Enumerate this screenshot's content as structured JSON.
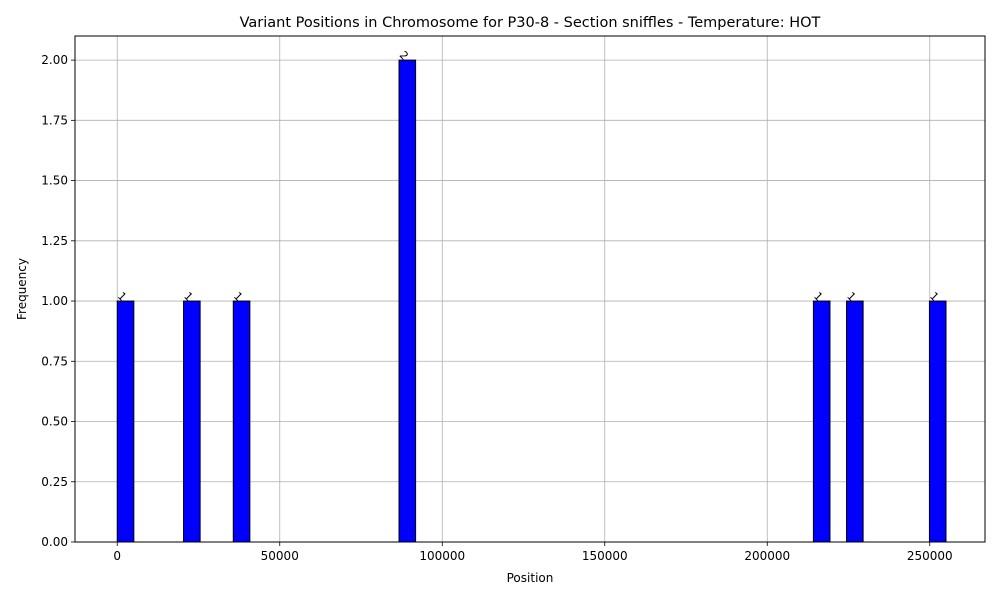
{
  "chart_data": {
    "type": "bar",
    "title": "Variant Positions in Chromosome for P30-8 - Section sniffles - Temperature: HOT",
    "xlabel": "Position",
    "ylabel": "Frequency",
    "xlim": [
      -13000,
      267000
    ],
    "ylim": [
      0,
      2.1
    ],
    "bin_width": 5100,
    "bars": [
      {
        "x_start": 0,
        "value": 1,
        "label": "1"
      },
      {
        "x_start": 20400,
        "value": 1,
        "label": "1"
      },
      {
        "x_start": 35700,
        "value": 1,
        "label": "1"
      },
      {
        "x_start": 86700,
        "value": 2,
        "label": "2"
      },
      {
        "x_start": 214200,
        "value": 1,
        "label": "1"
      },
      {
        "x_start": 224400,
        "value": 1,
        "label": "1"
      },
      {
        "x_start": 249900,
        "value": 1,
        "label": "1"
      }
    ],
    "x_ticks": [
      {
        "value": 0,
        "label": "0"
      },
      {
        "value": 50000,
        "label": "50000"
      },
      {
        "value": 100000,
        "label": "100000"
      },
      {
        "value": 150000,
        "label": "150000"
      },
      {
        "value": 200000,
        "label": "200000"
      },
      {
        "value": 250000,
        "label": "250000"
      }
    ],
    "y_ticks": [
      {
        "value": 0,
        "label": "0.00"
      },
      {
        "value": 0.25,
        "label": "0.25"
      },
      {
        "value": 0.5,
        "label": "0.50"
      },
      {
        "value": 0.75,
        "label": "0.75"
      },
      {
        "value": 1.0,
        "label": "1.00"
      },
      {
        "value": 1.25,
        "label": "1.25"
      },
      {
        "value": 1.5,
        "label": "1.50"
      },
      {
        "value": 1.75,
        "label": "1.75"
      },
      {
        "value": 2.0,
        "label": "2.00"
      }
    ],
    "grid": true,
    "colors": {
      "bar_fill": "#0000ff",
      "bar_edge": "#000000",
      "grid": "#b0b0b0"
    }
  }
}
